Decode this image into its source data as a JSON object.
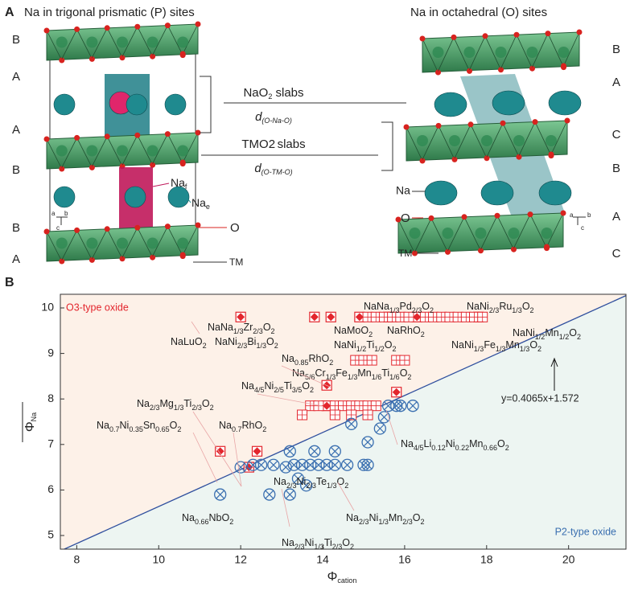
{
  "panel_a": {
    "label": "A",
    "title_left": "Na in trigonal prismatic (P) sites",
    "title_right": "Na in octahedral (O) sites",
    "layers_left": [
      "B",
      "A",
      "A",
      "B",
      "B",
      "A"
    ],
    "layers_right": [
      "B",
      "A",
      "C",
      "B",
      "A",
      "C"
    ],
    "slab_labels": [
      "NaO2 slabs",
      "d(O-Na-O)",
      "TMO2 slabs",
      "d(O-TM-O)"
    ],
    "site_labels_left": [
      "Naf",
      "Nae",
      "O",
      "TM"
    ],
    "site_labels_right": [
      "Na",
      "O",
      "TM"
    ],
    "axes_left": [
      "a",
      "b",
      "c"
    ],
    "axes_right": [
      "a",
      "b",
      "c"
    ]
  },
  "chart_data": {
    "type": "scatter",
    "panel_label": "B",
    "xlabel": "Φcation",
    "ylabel": "ΦNa",
    "xlim": [
      7.6,
      21.4
    ],
    "ylim": [
      4.7,
      10.3
    ],
    "xticks": [
      8,
      10,
      12,
      14,
      16,
      18,
      20
    ],
    "yticks": [
      5,
      6,
      7,
      8,
      9,
      10
    ],
    "series": [
      {
        "marker": "diamond",
        "color": "#e3262d",
        "x": [
          12.0,
          13.8,
          14.2,
          14.9,
          15.6,
          16.3,
          17.8,
          14.1,
          14.1,
          15.8,
          11.5,
          12.4,
          12.2
        ],
        "y": [
          9.8,
          9.8,
          9.8,
          9.8,
          9.8,
          9.8,
          9.8,
          8.3,
          7.85,
          8.15,
          6.85,
          6.85,
          6.5
        ]
      },
      {
        "marker": "hatched-square",
        "color": "#e3262d",
        "x": [
          15.1,
          15.3,
          15.5,
          15.7,
          15.9,
          16.1,
          16.5,
          16.7,
          16.9,
          17.1,
          17.3,
          17.5,
          17.7,
          17.9,
          14.8,
          15.0,
          15.2,
          15.8,
          16.0,
          13.7,
          13.9,
          14.3,
          14.5,
          14.7,
          14.9,
          15.1,
          15.3,
          13.5,
          14.3,
          14.7,
          15.1
        ],
        "y": [
          9.8,
          9.8,
          9.8,
          9.8,
          9.8,
          9.8,
          9.8,
          9.8,
          9.8,
          9.8,
          9.8,
          9.8,
          9.8,
          9.8,
          8.85,
          8.85,
          8.85,
          8.85,
          8.85,
          7.85,
          7.85,
          7.85,
          7.85,
          7.85,
          7.85,
          7.85,
          7.85,
          7.65,
          7.65,
          7.65,
          7.65
        ]
      },
      {
        "marker": "crossed-circle",
        "color": "#3a6fb0",
        "x": [
          11.5,
          12.0,
          12.3,
          12.5,
          12.8,
          13.1,
          13.3,
          13.5,
          13.7,
          13.9,
          14.1,
          14.3,
          14.6,
          15.0,
          15.1,
          12.7,
          13.2,
          13.4,
          13.6,
          13.2,
          13.8,
          14.3,
          14.7,
          15.1,
          15.4,
          15.5,
          15.6,
          15.8,
          15.9,
          16.2
        ],
        "y": [
          5.9,
          6.5,
          6.55,
          6.55,
          6.55,
          6.5,
          6.55,
          6.55,
          6.55,
          6.55,
          6.55,
          6.55,
          6.55,
          6.55,
          6.55,
          5.9,
          5.9,
          6.25,
          6.1,
          6.85,
          6.85,
          6.85,
          7.45,
          7.05,
          7.35,
          7.6,
          7.85,
          7.85,
          7.85,
          7.85
        ]
      }
    ],
    "fit": {
      "slope": 0.4065,
      "intercept": 1.572,
      "label": "y=0.4065x+1.572",
      "color": "#2f4f9e"
    },
    "regions": [
      {
        "label": "O3-type oxide",
        "color": "#e3262d",
        "fill": "#fdf1e8"
      },
      {
        "label": "P2-type oxide",
        "color": "#3a6fb0",
        "fill": "#edf5f2"
      }
    ],
    "annotations": [
      "NaNa1/3Pd2/3O2",
      "NaNi2/3Ru1/3O2",
      "NaNa1/3Zr2/3O2",
      "NaMoO2",
      "NaRhO2",
      "NaNi1/2Mn1/2O2",
      "NaNi2/3Bi1/3O2",
      "NaNi1/2Ti1/2O2",
      "NaNi1/3Fe1/3Mn1/3O2",
      "NaLuO2",
      "Na0.85RhO2",
      "Na5/6Cr1/3Fe1/3Mn1/6Ti1/6O2",
      "Na4/5Ni2/5Ti3/5O2",
      "Na2/3Mg1/3Ti2/3O2",
      "Na0.7Ni0.35Sn0.65O2",
      "Na0.7RhO2",
      "Na4/5Li0.12Ni0.22Mn0.66O2",
      "Na2/3Ni2/3Te1/3O2",
      "Na0.66NbO2",
      "Na2/3Ni1/3Mn2/3O2",
      "Na2/3Ni1/3Ti2/3O2"
    ]
  }
}
